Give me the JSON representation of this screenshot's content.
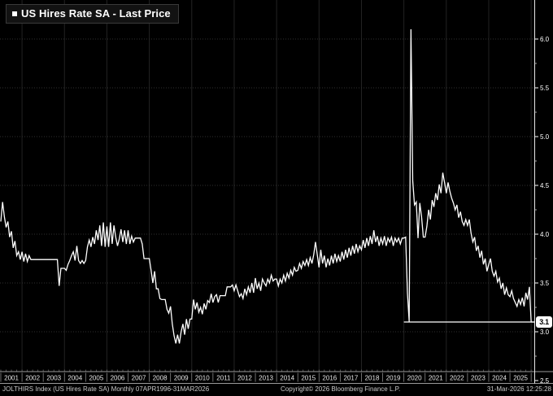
{
  "legend": {
    "marker_icon": "square-bullet",
    "title": "US Hires Rate SA - Last Price"
  },
  "last_price_badge": "3.1",
  "footer": {
    "left": "JOLTHIRS Index (US Hires Rate SA) Monthly 07APR1996-31MAR2026",
    "copyright": "Copyright© 2026 Bloomberg Finance L.P.",
    "timestamp": "31-Mar-2026 12:25:28"
  },
  "colors": {
    "background": "#000000",
    "series_line": "#ffffff",
    "grid_horizontal": "#303030",
    "grid_vertical": "#232323",
    "axis": "#e8e8e8",
    "frame_lines": "#9a9a9a",
    "tick_label": "#ffffff",
    "year_label": "#e6e6e6",
    "footer_text": "#c9c9c9",
    "badge_bg": "#ffffff",
    "badge_text": "#000000"
  },
  "chart_data": {
    "type": "line",
    "title": "US Hires Rate SA - Last Price",
    "legend_position": "top-left",
    "grid": {
      "horizontal": "dotted every 0.5",
      "vertical": "solid every 2 years"
    },
    "x_axis": {
      "start_year": 2001,
      "frequency": "monthly",
      "last_month": "2026-03"
    },
    "x_tick_labels": [
      "2001",
      "2002",
      "2003",
      "2004",
      "2005",
      "2006",
      "2007",
      "2008",
      "2009",
      "2010",
      "2011",
      "2012",
      "2013",
      "2014",
      "2015",
      "2016",
      "2017",
      "2018",
      "2019",
      "2020",
      "2021",
      "2022",
      "2023",
      "2024",
      "2025"
    ],
    "y_axis": {
      "side": "right",
      "min": 2.5,
      "max": 6.0,
      "major_step": 0.5,
      "minor_step": 0.25
    },
    "y_tick_labels": [
      "6.0",
      "5.5",
      "5.0",
      "4.5",
      "4.0",
      "3.5",
      "3.0",
      "2.5"
    ],
    "ylim": [
      2.5,
      6.15
    ],
    "last_price": 3.1,
    "last_price_line": {
      "value": 3.1,
      "starts_at_year": 2020
    },
    "series": [
      {
        "name": "US Hires Rate SA",
        "start": "2001-01",
        "values": [
          4.13,
          4.33,
          4.18,
          4.07,
          4.13,
          3.97,
          4.03,
          3.86,
          3.93,
          3.78,
          3.82,
          3.74,
          3.82,
          3.72,
          3.8,
          3.72,
          3.78,
          3.74,
          3.74,
          3.74,
          3.74,
          3.74,
          3.74,
          3.74,
          3.74,
          3.74,
          3.74,
          3.74,
          3.74,
          3.74,
          3.74,
          3.74,
          3.74,
          3.47,
          3.65,
          3.65,
          3.65,
          3.63,
          3.69,
          3.73,
          3.78,
          3.82,
          3.73,
          3.88,
          3.73,
          3.7,
          3.73,
          3.7,
          3.73,
          3.87,
          3.94,
          3.87,
          3.97,
          3.9,
          4.04,
          3.94,
          4.09,
          3.88,
          4.12,
          3.87,
          4.08,
          3.87,
          4.12,
          3.9,
          4.09,
          3.97,
          3.88,
          3.95,
          4.05,
          3.92,
          4.04,
          3.9,
          4.04,
          3.9,
          3.98,
          3.92,
          3.96,
          3.96,
          3.96,
          3.96,
          3.9,
          3.75,
          3.75,
          3.75,
          3.75,
          3.63,
          3.5,
          3.62,
          3.44,
          3.44,
          3.34,
          3.33,
          3.33,
          3.33,
          3.23,
          3.19,
          3.26,
          3.08,
          2.96,
          2.88,
          2.97,
          2.88,
          3.0,
          3.08,
          2.97,
          3.13,
          3.03,
          3.13,
          3.13,
          3.33,
          3.23,
          3.3,
          3.2,
          3.25,
          3.18,
          3.29,
          3.23,
          3.32,
          3.3,
          3.39,
          3.3,
          3.36,
          3.38,
          3.3,
          3.37,
          3.37,
          3.37,
          3.37,
          3.46,
          3.46,
          3.46,
          3.48,
          3.42,
          3.48,
          3.42,
          3.36,
          3.39,
          3.34,
          3.44,
          3.38,
          3.46,
          3.4,
          3.5,
          3.4,
          3.55,
          3.44,
          3.5,
          3.42,
          3.54,
          3.5,
          3.47,
          3.54,
          3.5,
          3.58,
          3.52,
          3.54,
          3.54,
          3.47,
          3.54,
          3.5,
          3.58,
          3.52,
          3.6,
          3.55,
          3.63,
          3.58,
          3.66,
          3.62,
          3.63,
          3.7,
          3.65,
          3.72,
          3.68,
          3.74,
          3.68,
          3.76,
          3.7,
          3.79,
          3.92,
          3.79,
          3.66,
          3.84,
          3.7,
          3.78,
          3.66,
          3.75,
          3.68,
          3.78,
          3.7,
          3.8,
          3.72,
          3.78,
          3.72,
          3.82,
          3.74,
          3.84,
          3.76,
          3.86,
          3.78,
          3.88,
          3.8,
          3.9,
          3.82,
          3.88,
          3.84,
          3.94,
          3.86,
          3.96,
          3.88,
          3.98,
          3.9,
          4.04,
          3.92,
          3.98,
          3.88,
          3.96,
          3.9,
          3.98,
          3.88,
          3.96,
          3.92,
          3.97,
          3.88,
          3.96,
          3.92,
          3.96,
          3.9,
          3.96,
          3.96,
          3.97,
          3.4,
          3.1,
          6.1,
          4.55,
          4.3,
          4.33,
          3.96,
          4.32,
          4.18,
          3.97,
          3.97,
          4.08,
          4.25,
          4.15,
          4.35,
          4.28,
          4.42,
          4.35,
          4.51,
          4.42,
          4.63,
          4.53,
          4.42,
          4.53,
          4.44,
          4.37,
          4.32,
          4.25,
          4.3,
          4.17,
          4.23,
          4.13,
          4.09,
          4.15,
          4.09,
          4.15,
          4.01,
          3.92,
          3.97,
          3.83,
          3.88,
          3.76,
          3.83,
          3.69,
          3.75,
          3.62,
          3.69,
          3.75,
          3.62,
          3.57,
          3.62,
          3.51,
          3.55,
          3.44,
          3.5,
          3.38,
          3.45,
          3.38,
          3.36,
          3.42,
          3.34,
          3.3,
          3.26,
          3.33,
          3.28,
          3.35,
          3.26,
          3.4,
          3.33,
          3.46,
          3.1,
          3.1,
          3.1
        ]
      }
    ]
  }
}
